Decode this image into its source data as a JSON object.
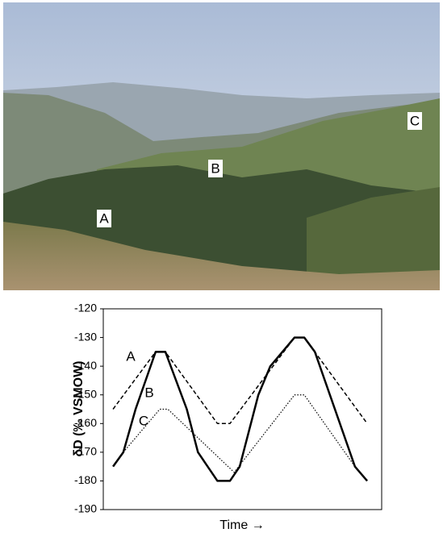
{
  "photo": {
    "labels": [
      "A",
      "B",
      "C"
    ]
  },
  "chart_data": {
    "type": "line",
    "y_label": "δD (‰ VSMOW)",
    "x_label": "Time →",
    "ylim": [
      -190,
      -120
    ],
    "yticks": [
      -120,
      -130,
      -140,
      -150,
      -160,
      -170,
      -180,
      -190
    ],
    "xlim": [
      0,
      100
    ],
    "series": [
      {
        "name": "A",
        "color": "#000000",
        "dash": "dashed",
        "x": [
          3.5,
          18.8,
          22.3,
          41,
          45.5,
          68.7,
          72.2,
          94.8
        ],
        "values": [
          -155,
          -135,
          -135,
          -160,
          -160,
          -130,
          -130,
          -160
        ]
      },
      {
        "name": "B",
        "color": "#000000",
        "dash": "solid",
        "x": [
          3.5,
          7.2,
          11.6,
          18.8,
          22.3,
          30,
          34,
          41,
          45.5,
          49,
          55.7,
          60,
          68.7,
          72.2,
          76,
          90.4,
          94.8
        ],
        "values": [
          -175,
          -170,
          -155,
          -135,
          -135,
          -155,
          -170,
          -180,
          -180,
          -175,
          -150,
          -140,
          -130,
          -130,
          -135,
          -175,
          -180
        ]
      },
      {
        "name": "C",
        "color": "#000000",
        "dash": "dotted",
        "x": [
          7.2,
          20.3,
          23.2,
          47,
          68.7,
          72.2,
          90.4
        ],
        "values": [
          -170,
          -155,
          -155,
          -177,
          -150,
          -150,
          -175
        ]
      }
    ]
  }
}
